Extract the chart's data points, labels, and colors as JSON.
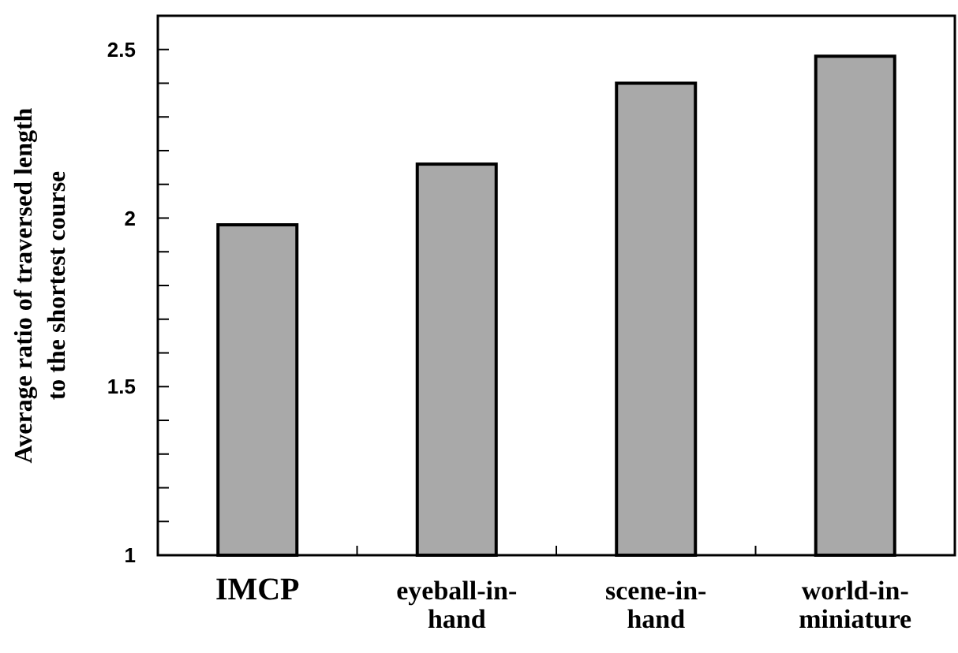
{
  "chart_data": {
    "type": "bar",
    "ylabel": "Average ratio of traversed length\nto the shortest course",
    "categories": [
      "IMCP",
      "eyeball-in-hand",
      "scene-in-hand",
      "world-in-miniature"
    ],
    "values": [
      1.98,
      2.16,
      2.4,
      2.48
    ],
    "color": "#a9a9a9",
    "ylim": [
      1,
      2.6
    ],
    "yticks": [
      1,
      {
        "value": 1.1,
        "label": null
      },
      {
        "value": 1.2,
        "label": null
      },
      {
        "value": 1.3,
        "label": null
      },
      {
        "value": 1.4,
        "label": null
      },
      1.5,
      {
        "value": 1.6,
        "label": null
      },
      {
        "value": 1.7,
        "label": null
      },
      {
        "value": 1.8,
        "label": null
      },
      {
        "value": 1.9,
        "label": null
      },
      2,
      {
        "value": 2.1,
        "label": null
      },
      {
        "value": 2.2,
        "label": null
      },
      {
        "value": 2.3,
        "label": null
      },
      {
        "value": 2.4,
        "label": null
      },
      2.5
    ],
    "grid": false
  }
}
